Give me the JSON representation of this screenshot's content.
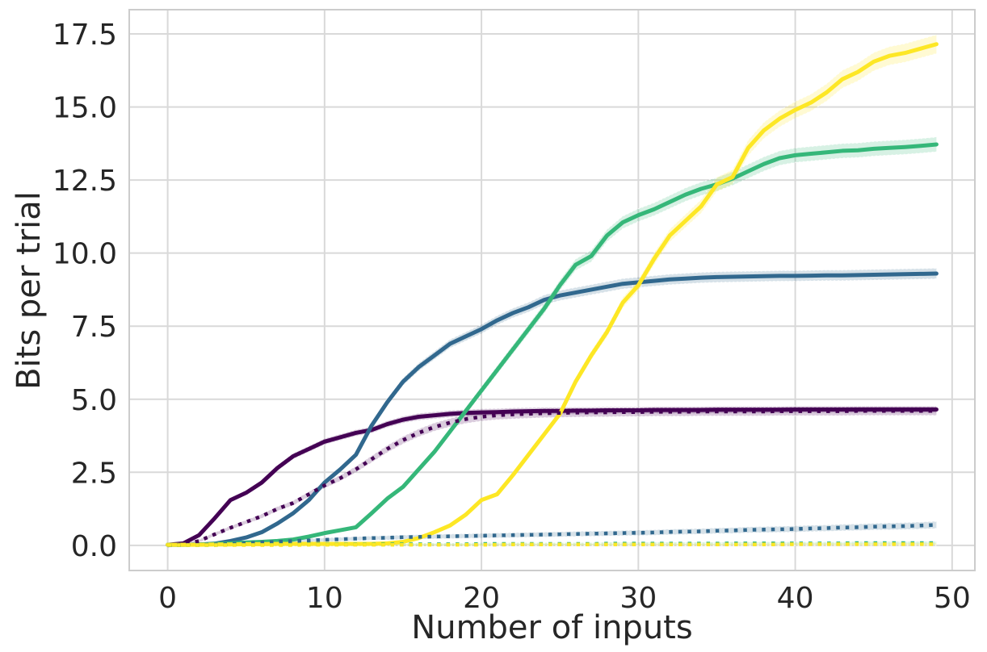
{
  "page": {
    "background": "#ffffff"
  },
  "chart_data": {
    "type": "line",
    "title": "",
    "xlabel": "Number of inputs",
    "ylabel": "Bits per trial",
    "xlim": [
      -2.45,
      51.45
    ],
    "ylim": [
      -0.86,
      18.33
    ],
    "xticks": [
      0,
      10,
      20,
      30,
      40,
      50
    ],
    "xtick_labels": [
      "0",
      "10",
      "20",
      "30",
      "40",
      "50"
    ],
    "yticks": [
      0,
      2.5,
      5,
      7.5,
      10,
      12.5,
      15,
      17.5
    ],
    "ytick_labels": [
      "0.0",
      "2.5",
      "5.0",
      "7.5",
      "10.0",
      "12.5",
      "15.0",
      "17.5"
    ],
    "grid": true,
    "legend": "none",
    "band_alpha": 0.2,
    "colors": {
      "grid": "#d9d9d9",
      "spine": "#cccccc",
      "text": "#262626",
      "purple": "#440154",
      "blue": "#31688e",
      "green": "#35b779",
      "yellow": "#fde725"
    },
    "x": [
      0,
      1,
      2,
      3,
      4,
      5,
      6,
      7,
      8,
      9,
      10,
      11,
      12,
      13,
      14,
      15,
      16,
      17,
      18,
      19,
      20,
      21,
      22,
      23,
      24,
      25,
      26,
      27,
      28,
      29,
      30,
      31,
      32,
      33,
      34,
      35,
      36,
      37,
      38,
      39,
      40,
      41,
      42,
      43,
      44,
      45,
      46,
      47,
      48,
      49
    ],
    "series": [
      {
        "name": "solid-purple",
        "color": "#440154",
        "style": "solid",
        "band": [
          0.05,
          0.12
        ],
        "values": [
          0.02,
          0.07,
          0.35,
          0.93,
          1.55,
          1.8,
          2.15,
          2.65,
          3.05,
          3.3,
          3.55,
          3.7,
          3.85,
          3.95,
          4.15,
          4.3,
          4.4,
          4.45,
          4.5,
          4.53,
          4.55,
          4.56,
          4.58,
          4.59,
          4.6,
          4.6,
          4.61,
          4.61,
          4.62,
          4.62,
          4.62,
          4.63,
          4.63,
          4.63,
          4.63,
          4.64,
          4.64,
          4.64,
          4.64,
          4.64,
          4.65,
          4.65,
          4.65,
          4.65,
          4.65,
          4.65,
          4.65,
          4.65,
          4.65,
          4.65
        ]
      },
      {
        "name": "solid-blue",
        "color": "#31688e",
        "style": "solid",
        "band": [
          0.05,
          0.18
        ],
        "values": [
          0.02,
          0.02,
          0.03,
          0.06,
          0.15,
          0.27,
          0.45,
          0.75,
          1.1,
          1.55,
          2.15,
          2.6,
          3.1,
          4.1,
          4.9,
          5.6,
          6.1,
          6.5,
          6.9,
          7.15,
          7.4,
          7.7,
          7.95,
          8.15,
          8.4,
          8.55,
          8.65,
          8.75,
          8.85,
          8.95,
          9.0,
          9.05,
          9.1,
          9.13,
          9.16,
          9.18,
          9.19,
          9.2,
          9.21,
          9.22,
          9.22,
          9.23,
          9.24,
          9.24,
          9.25,
          9.26,
          9.27,
          9.28,
          9.29,
          9.3
        ]
      },
      {
        "name": "solid-green",
        "color": "#35b779",
        "style": "solid",
        "band": [
          0.06,
          0.25
        ],
        "values": [
          0.02,
          0.02,
          0.03,
          0.05,
          0.07,
          0.1,
          0.12,
          0.15,
          0.2,
          0.3,
          0.42,
          0.52,
          0.62,
          1.1,
          1.6,
          2.0,
          2.6,
          3.2,
          3.9,
          4.6,
          5.3,
          6.0,
          6.7,
          7.4,
          8.1,
          8.9,
          9.6,
          9.9,
          10.6,
          11.05,
          11.3,
          11.5,
          11.75,
          12.0,
          12.2,
          12.35,
          12.55,
          12.8,
          13.05,
          13.25,
          13.35,
          13.4,
          13.45,
          13.5,
          13.52,
          13.57,
          13.6,
          13.63,
          13.67,
          13.72
        ]
      },
      {
        "name": "solid-yellow",
        "color": "#fde725",
        "style": "solid",
        "band": [
          0.05,
          0.32
        ],
        "values": [
          0.02,
          0.02,
          0.02,
          0.03,
          0.03,
          0.04,
          0.04,
          0.05,
          0.05,
          0.05,
          0.05,
          0.05,
          0.05,
          0.05,
          0.07,
          0.12,
          0.25,
          0.45,
          0.68,
          1.05,
          1.55,
          1.75,
          2.4,
          3.1,
          3.8,
          4.5,
          5.6,
          6.5,
          7.3,
          8.3,
          8.9,
          9.8,
          10.6,
          11.1,
          11.6,
          12.35,
          12.6,
          13.6,
          14.2,
          14.6,
          14.9,
          15.15,
          15.5,
          15.95,
          16.2,
          16.55,
          16.75,
          16.85,
          17.0,
          17.15
        ]
      },
      {
        "name": "dotted-purple",
        "color": "#440154",
        "style": "dotted",
        "band": [
          0.05,
          0.15
        ],
        "values": [
          0.0,
          0.03,
          0.15,
          0.38,
          0.6,
          0.8,
          1.0,
          1.25,
          1.45,
          1.75,
          2.05,
          2.3,
          2.6,
          2.95,
          3.3,
          3.6,
          3.85,
          4.05,
          4.2,
          4.32,
          4.4,
          4.45,
          4.48,
          4.5,
          4.52,
          4.53,
          4.54,
          4.55,
          4.55,
          4.56,
          4.56,
          4.57,
          4.57,
          4.57,
          4.58,
          4.58,
          4.58,
          4.58,
          4.58,
          4.59,
          4.59,
          4.59,
          4.59,
          4.59,
          4.6,
          4.6,
          4.6,
          4.6,
          4.6,
          4.6
        ]
      },
      {
        "name": "dotted-blue",
        "color": "#31688e",
        "style": "dotted",
        "band": [
          0.04,
          0.12
        ],
        "values": [
          0.0,
          0.01,
          0.02,
          0.03,
          0.05,
          0.07,
          0.1,
          0.12,
          0.15,
          0.17,
          0.19,
          0.21,
          0.23,
          0.25,
          0.26,
          0.28,
          0.29,
          0.3,
          0.31,
          0.32,
          0.33,
          0.34,
          0.35,
          0.36,
          0.37,
          0.38,
          0.39,
          0.4,
          0.41,
          0.42,
          0.43,
          0.44,
          0.46,
          0.47,
          0.48,
          0.5,
          0.51,
          0.53,
          0.54,
          0.55,
          0.56,
          0.58,
          0.59,
          0.61,
          0.62,
          0.64,
          0.65,
          0.66,
          0.68,
          0.7
        ]
      },
      {
        "name": "dotted-green",
        "color": "#35b779",
        "style": "dotted",
        "band": [
          0.03,
          0.05
        ],
        "values": [
          0.01,
          0.01,
          0.01,
          0.01,
          0.02,
          0.02,
          0.02,
          0.02,
          0.02,
          0.03,
          0.03,
          0.03,
          0.03,
          0.03,
          0.04,
          0.04,
          0.04,
          0.04,
          0.04,
          0.04,
          0.05,
          0.05,
          0.05,
          0.05,
          0.05,
          0.05,
          0.05,
          0.05,
          0.06,
          0.06,
          0.06,
          0.06,
          0.06,
          0.06,
          0.06,
          0.06,
          0.07,
          0.07,
          0.07,
          0.07,
          0.07,
          0.07,
          0.07,
          0.07,
          0.08,
          0.08,
          0.08,
          0.08,
          0.08,
          0.08
        ]
      },
      {
        "name": "dotted-yellow",
        "color": "#fde725",
        "style": "dotted",
        "band": [
          0.03,
          0.04
        ],
        "values": [
          0.01,
          0.01,
          0.01,
          0.01,
          0.01,
          0.01,
          0.01,
          0.01,
          0.01,
          0.02,
          0.02,
          0.02,
          0.02,
          0.02,
          0.02,
          0.02,
          0.02,
          0.02,
          0.02,
          0.02,
          0.02,
          0.02,
          0.03,
          0.03,
          0.03,
          0.03,
          0.03,
          0.03,
          0.03,
          0.03,
          0.03,
          0.03,
          0.03,
          0.03,
          0.03,
          0.03,
          0.03,
          0.03,
          0.03,
          0.03,
          0.04,
          0.04,
          0.04,
          0.04,
          0.04,
          0.04,
          0.04,
          0.04,
          0.04,
          0.04
        ]
      }
    ]
  }
}
